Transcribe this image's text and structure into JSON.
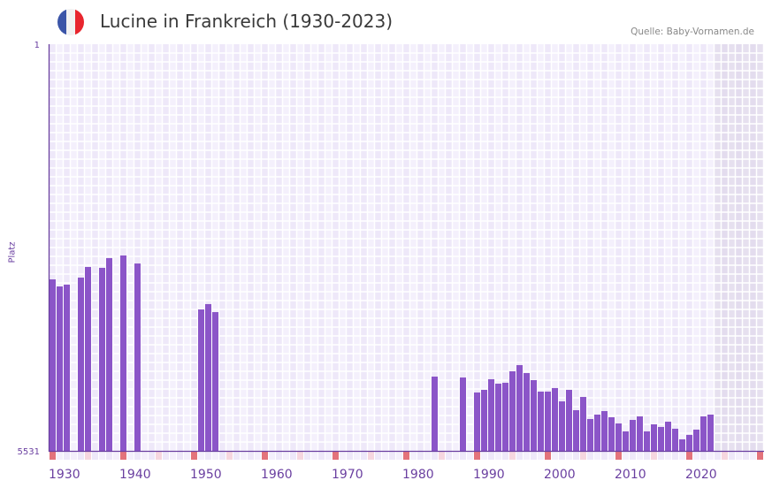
{
  "header": {
    "title": "Lucine in Frankreich (1930-2023)",
    "source": "Quelle: Baby-Vornamen.de",
    "flag_icon": "france-flag-icon",
    "flag_colors": [
      "#3b55a8",
      "#f2f2f2",
      "#e8262e"
    ]
  },
  "chart_data": {
    "type": "bar",
    "title": "Lucine in Frankreich (1930-2023)",
    "ylabel": "Platz",
    "xlabel": "",
    "ylim": [
      5531,
      1
    ],
    "y_ticks": [
      "1",
      "5531"
    ],
    "xlim": [
      1930,
      2030
    ],
    "x_ticks": [
      "1930",
      "1940",
      "1950",
      "1960",
      "1970",
      "1980",
      "1990",
      "2000",
      "2010",
      "2020"
    ],
    "future_shaded_from": 2024,
    "colors": {
      "bar": "#8b55c8",
      "axis": "#6a3fa0",
      "marker_decade": "#e3737b",
      "marker_half": "#f6d6df"
    },
    "years": [
      1930,
      1931,
      1932,
      1934,
      1935,
      1937,
      1938,
      1940,
      1942,
      1951,
      1952,
      1953,
      1984,
      1988,
      1990,
      1991,
      1992,
      1993,
      1994,
      1995,
      1996,
      1997,
      1998,
      1999,
      2000,
      2001,
      2002,
      2003,
      2004,
      2005,
      2006,
      2007,
      2008,
      2009,
      2010,
      2011,
      2012,
      2013,
      2014,
      2015,
      2016,
      2017,
      2018,
      2019,
      2020,
      2021,
      2022,
      2023
    ],
    "ranks": [
      3199,
      3295,
      3271,
      3175,
      3030,
      3042,
      2910,
      2874,
      2983,
      3608,
      3535,
      3644,
      4521,
      4533,
      4737,
      4701,
      4557,
      4617,
      4605,
      4449,
      4365,
      4473,
      4569,
      4725,
      4725,
      4677,
      4858,
      4701,
      4978,
      4798,
      5098,
      5038,
      4990,
      5074,
      5158,
      5266,
      5110,
      5062,
      5266,
      5170,
      5206,
      5134,
      5230,
      5374,
      5314,
      5242,
      5062,
      5038
    ]
  }
}
